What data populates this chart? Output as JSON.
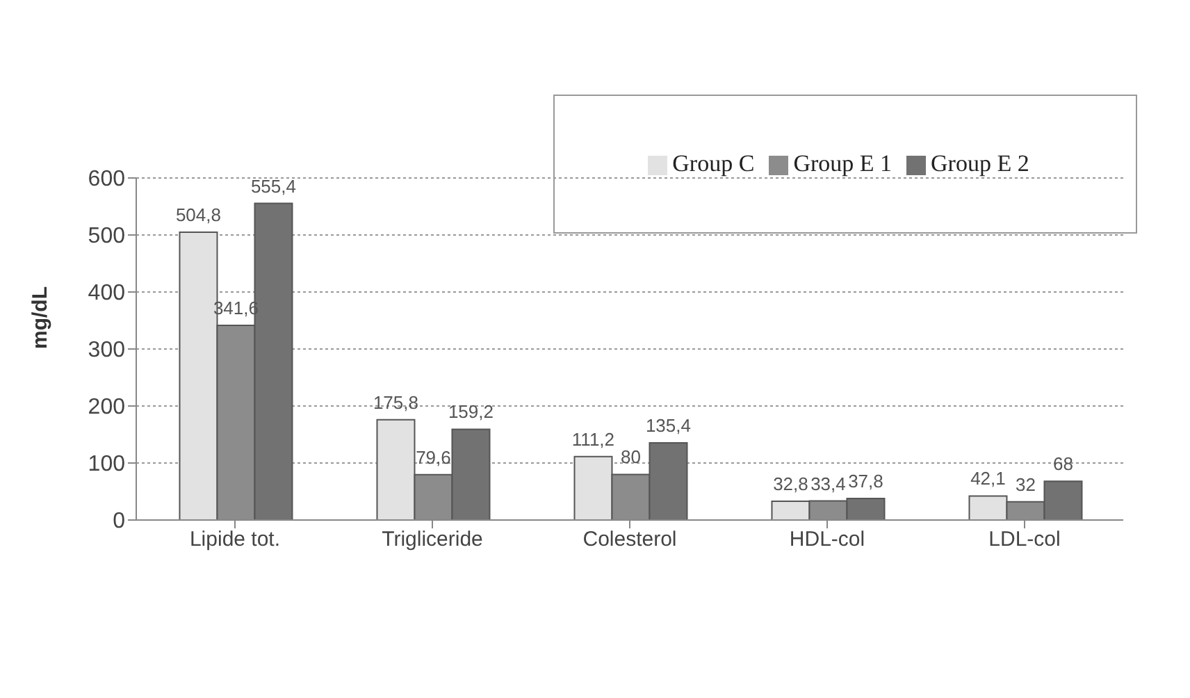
{
  "chart_data": {
    "type": "bar",
    "ylabel": "mg/dL",
    "categories": [
      "Lipide tot.",
      "Trigliceride",
      "Colesterol",
      "HDL-col",
      "LDL-col"
    ],
    "series": [
      {
        "name": "Group C",
        "color": "#e2e2e2",
        "values": [
          504.8,
          175.8,
          111.2,
          32.8,
          42.1
        ],
        "value_labels": [
          "504,8",
          "175,8",
          "111,2",
          "32,8",
          "42,1"
        ]
      },
      {
        "name": "Group E 1",
        "color": "#8c8c8c",
        "values": [
          341.6,
          79.6,
          80,
          33.4,
          32
        ],
        "value_labels": [
          "341,6",
          "79,6",
          "80",
          "33,4",
          "32"
        ]
      },
      {
        "name": "Group E 2",
        "color": "#727272",
        "values": [
          555.4,
          159.2,
          135.4,
          37.8,
          68
        ],
        "value_labels": [
          "555,4",
          "159,2",
          "135,4",
          "37,8",
          "68"
        ]
      }
    ],
    "ylim": [
      0,
      600
    ],
    "yticks": [
      0,
      100,
      200,
      300,
      400,
      500,
      600
    ],
    "grid": "y",
    "legend": "top right"
  }
}
